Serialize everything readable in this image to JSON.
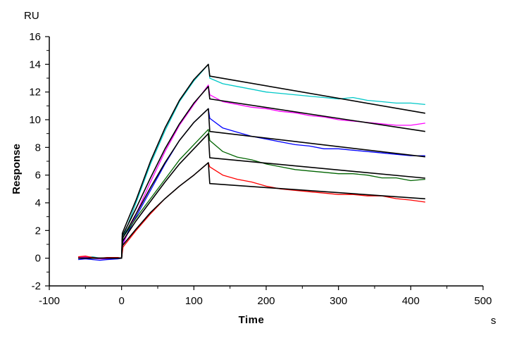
{
  "chart_data": {
    "type": "line",
    "title": "",
    "xlabel": "Time",
    "ylabel": "Response",
    "x_unit": "s",
    "y_unit": "RU",
    "xlim": [
      -100,
      500
    ],
    "ylim": [
      -2,
      16
    ],
    "x_ticks": [
      -100,
      0,
      100,
      200,
      300,
      400,
      500
    ],
    "y_ticks": [
      -2,
      0,
      2,
      4,
      6,
      8,
      10,
      12,
      14,
      16
    ],
    "grid": false,
    "legend": "none",
    "series": [
      {
        "color": "#00C8C8",
        "x": [
          -60,
          -50,
          -40,
          -30,
          -20,
          -5,
          0,
          2,
          20,
          40,
          60,
          80,
          100,
          120,
          122,
          140,
          160,
          180,
          200,
          220,
          240,
          260,
          280,
          300,
          320,
          340,
          360,
          380,
          400,
          420
        ],
        "y": [
          0,
          0.05,
          0.1,
          0,
          -0.05,
          0,
          0,
          1.5,
          4.0,
          6.8,
          9.2,
          11.3,
          12.8,
          14.0,
          13.0,
          12.6,
          12.4,
          12.2,
          12.0,
          11.9,
          11.8,
          11.7,
          11.6,
          11.5,
          11.6,
          11.4,
          11.3,
          11.2,
          11.2,
          11.1
        ]
      },
      {
        "color": "#FF00FF",
        "x": [
          -60,
          -50,
          -40,
          -30,
          -20,
          -5,
          0,
          2,
          20,
          40,
          60,
          80,
          100,
          120,
          122,
          140,
          160,
          180,
          200,
          220,
          240,
          260,
          280,
          300,
          320,
          340,
          360,
          380,
          400,
          420
        ],
        "y": [
          0.05,
          0.1,
          0,
          -0.05,
          -0.05,
          0,
          0,
          1.0,
          3.2,
          5.5,
          7.7,
          9.6,
          11.1,
          12.5,
          11.8,
          11.3,
          11.1,
          10.9,
          10.8,
          10.6,
          10.5,
          10.3,
          10.2,
          10.0,
          9.9,
          9.8,
          9.7,
          9.6,
          9.6,
          9.75
        ]
      },
      {
        "color": "#0000FF",
        "x": [
          -60,
          -50,
          -40,
          -30,
          -20,
          -5,
          0,
          2,
          20,
          40,
          60,
          80,
          100,
          120,
          122,
          140,
          160,
          180,
          200,
          220,
          240,
          260,
          280,
          300,
          320,
          340,
          360,
          380,
          400,
          420
        ],
        "y": [
          -0.1,
          -0.05,
          -0.1,
          -0.15,
          -0.1,
          -0.05,
          0,
          1.2,
          3.0,
          4.9,
          6.8,
          8.5,
          9.8,
          10.8,
          10.1,
          9.4,
          9.1,
          8.8,
          8.6,
          8.4,
          8.2,
          8.1,
          7.9,
          7.9,
          7.8,
          7.7,
          7.6,
          7.5,
          7.4,
          7.4
        ]
      },
      {
        "color": "#006400",
        "x": [
          -60,
          -50,
          -40,
          -30,
          -20,
          -5,
          0,
          2,
          20,
          40,
          60,
          80,
          100,
          120,
          122,
          140,
          160,
          180,
          200,
          220,
          240,
          260,
          280,
          300,
          320,
          340,
          360,
          380,
          400,
          420
        ],
        "y": [
          0,
          0,
          0.05,
          0,
          0,
          0,
          0,
          1.5,
          2.9,
          4.3,
          5.7,
          7.1,
          8.2,
          9.3,
          8.5,
          7.7,
          7.3,
          7.1,
          6.8,
          6.6,
          6.4,
          6.3,
          6.2,
          6.1,
          6.1,
          6.0,
          5.8,
          5.8,
          5.6,
          5.7
        ]
      },
      {
        "color": "#FF0000",
        "x": [
          -60,
          -50,
          -40,
          -30,
          -20,
          -5,
          0,
          2,
          20,
          40,
          60,
          80,
          100,
          120,
          122,
          140,
          160,
          180,
          200,
          220,
          240,
          260,
          280,
          300,
          320,
          340,
          360,
          380,
          400,
          420
        ],
        "y": [
          0.1,
          0.15,
          0.05,
          0,
          0.05,
          0.05,
          0,
          0.8,
          2.0,
          3.2,
          4.3,
          5.2,
          6.0,
          6.9,
          6.6,
          6.0,
          5.7,
          5.5,
          5.2,
          5.0,
          4.9,
          4.8,
          4.7,
          4.6,
          4.6,
          4.5,
          4.5,
          4.3,
          4.2,
          4.05
        ]
      }
    ],
    "fits": [
      {
        "color": "#000000",
        "x": [
          -60,
          0,
          1,
          20,
          40,
          60,
          80,
          100,
          120,
          122,
          420
        ],
        "y": [
          0,
          0,
          1.8,
          4.2,
          7.0,
          9.4,
          11.4,
          12.9,
          14.0,
          13.15,
          10.47
        ]
      },
      {
        "color": "#000000",
        "x": [
          -60,
          0,
          1,
          20,
          40,
          60,
          80,
          100,
          120,
          122,
          420
        ],
        "y": [
          0,
          0,
          1.6,
          3.6,
          5.8,
          7.9,
          9.7,
          11.2,
          12.4,
          11.5,
          9.15
        ]
      },
      {
        "color": "#000000",
        "x": [
          -60,
          0,
          1,
          20,
          40,
          60,
          80,
          100,
          120,
          122,
          420
        ],
        "y": [
          0,
          0,
          1.4,
          3.2,
          5.1,
          6.9,
          8.5,
          9.8,
          10.8,
          9.15,
          7.32
        ]
      },
      {
        "color": "#000000",
        "x": [
          -60,
          0,
          1,
          20,
          40,
          60,
          80,
          100,
          120,
          122,
          420
        ],
        "y": [
          0,
          0,
          1.2,
          2.7,
          4.1,
          5.5,
          6.8,
          7.9,
          9.0,
          7.25,
          5.78
        ]
      },
      {
        "color": "#000000",
        "x": [
          -60,
          0,
          1,
          20,
          40,
          60,
          80,
          100,
          120,
          122,
          420
        ],
        "y": [
          0,
          0,
          0.9,
          2.1,
          3.3,
          4.3,
          5.2,
          6.0,
          6.9,
          5.39,
          4.29
        ]
      }
    ]
  }
}
